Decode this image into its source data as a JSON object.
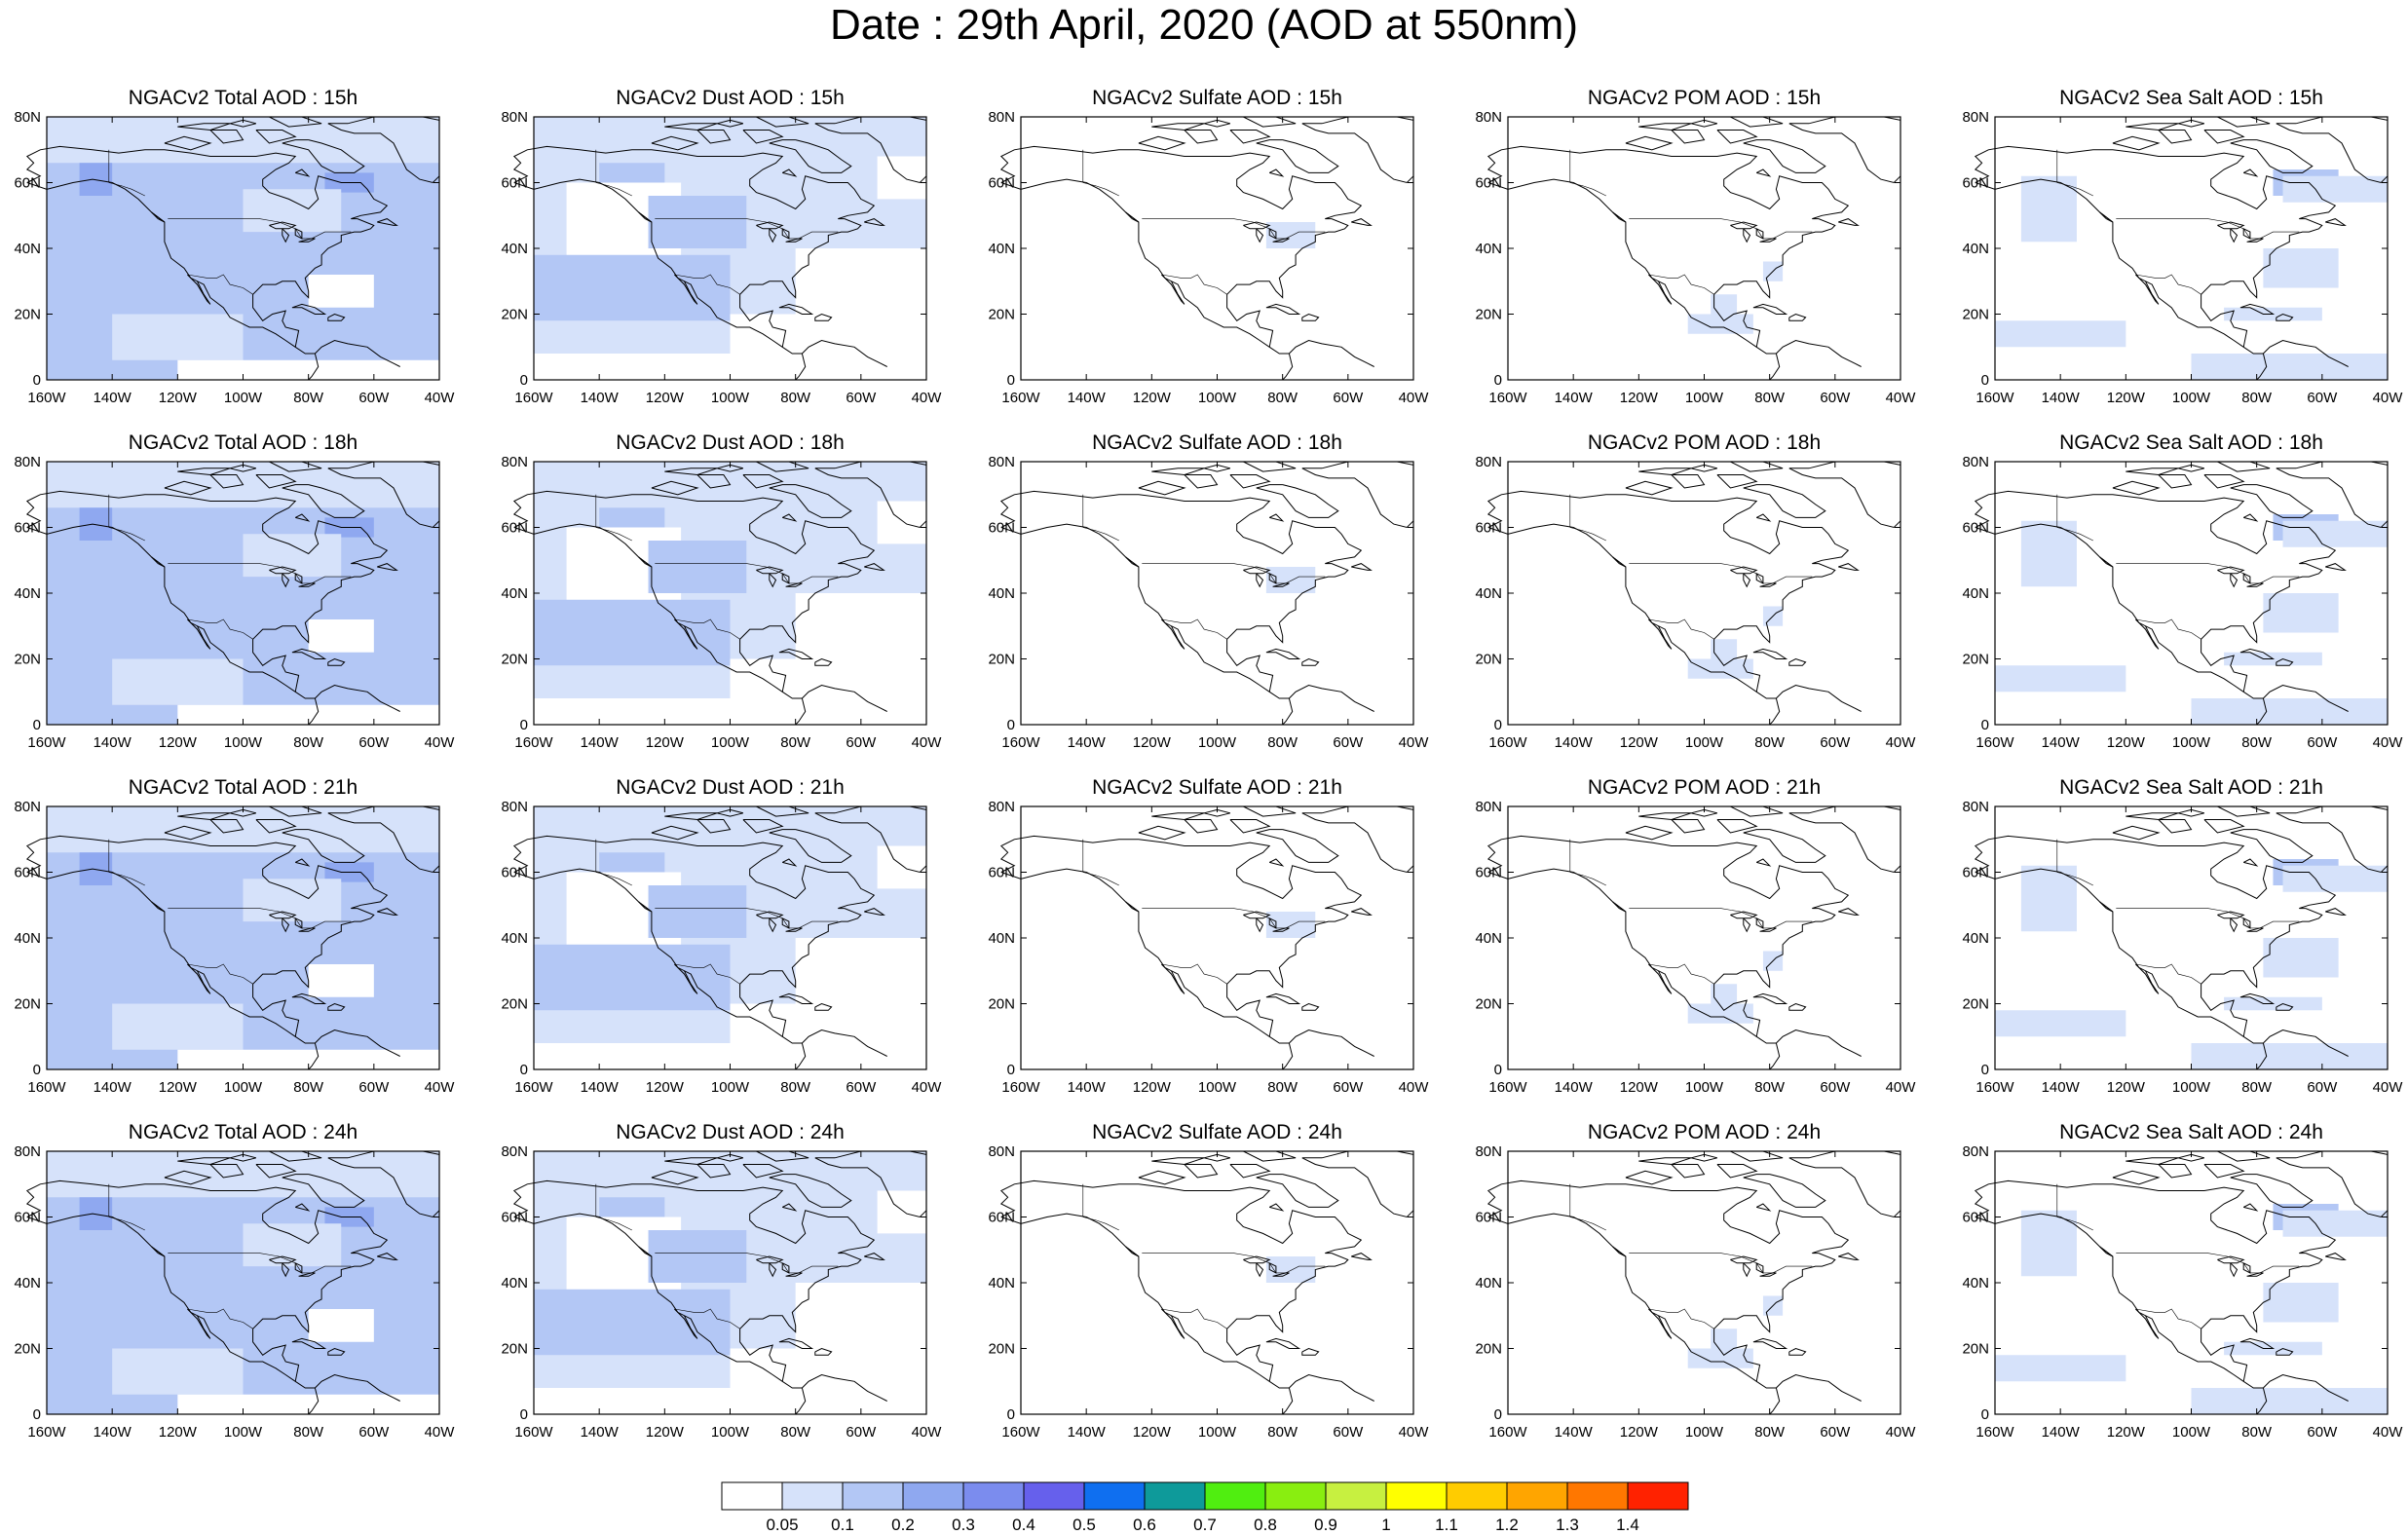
{
  "title": "Date : 29th April, 2020 (AOD at 550nm)",
  "colors": {
    "coast": "#000000",
    "bands": [
      "#ffffff",
      "#d6e2fa",
      "#b3c7f5",
      "#8fa8f0",
      "#7b8cee",
      "#6660ec",
      "#0f6ff0",
      "#0e9a9a",
      "#50ee10",
      "#89ee10",
      "#c7f040",
      "#ffff00",
      "#ffcc00",
      "#ffa500",
      "#ff7700",
      "#ff2200"
    ]
  },
  "panel_titles": [
    [
      "NGACv2 Total AOD : 15h",
      "NGACv2 Dust AOD : 15h",
      "NGACv2 Sulfate AOD : 15h",
      "NGACv2 POM AOD : 15h",
      "NGACv2 Sea Salt AOD : 15h"
    ],
    [
      "NGACv2 Total AOD : 18h",
      "NGACv2 Dust AOD : 18h",
      "NGACv2 Sulfate AOD : 18h",
      "NGACv2 POM AOD : 18h",
      "NGACv2 Sea Salt AOD : 18h"
    ],
    [
      "NGACv2 Total AOD : 21h",
      "NGACv2 Dust AOD : 21h",
      "NGACv2 Sulfate AOD : 21h",
      "NGACv2 POM AOD : 21h",
      "NGACv2 Sea Salt AOD : 21h"
    ],
    [
      "NGACv2 Total AOD : 24h",
      "NGACv2 Dust AOD : 24h",
      "NGACv2 Sulfate AOD : 24h",
      "NGACv2 POM AOD : 24h",
      "NGACv2 Sea Salt  AOD : 24h"
    ]
  ],
  "lat_ticks": [
    "80N",
    "60N",
    "40N",
    "20N",
    "0"
  ],
  "lon_ticks": [
    "160W",
    "140W",
    "120W",
    "100W",
    "80W",
    "60W",
    "40W"
  ],
  "lat_values": [
    80,
    60,
    40,
    20,
    0
  ],
  "lon_values": [
    -160,
    -140,
    -120,
    -100,
    -80,
    -60,
    -40
  ],
  "colorbar_labels": [
    "0.05",
    "0.1",
    "0.2",
    "0.3",
    "0.4",
    "0.5",
    "0.6",
    "0.7",
    "0.8",
    "0.9",
    "1",
    "1.1",
    "1.2",
    "1.3",
    "1.4"
  ]
}
